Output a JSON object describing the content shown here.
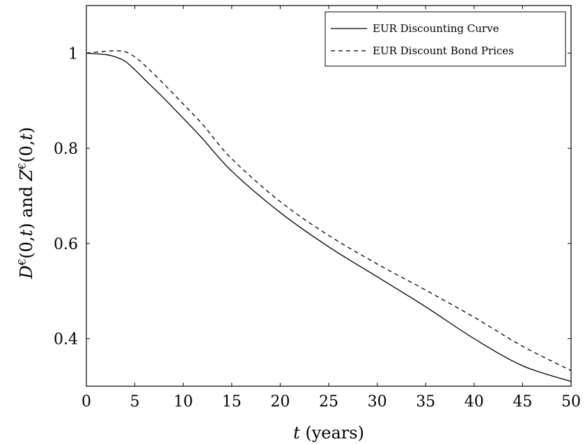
{
  "chart_data": {
    "type": "line",
    "title": "",
    "xlabel": {
      "var": "t",
      "rest": " (years)"
    },
    "ylabel": {
      "part1": "D",
      "sup1": "€",
      "arg1": "(0,",
      "var1": "t",
      "close1": ")",
      "and": " and ",
      "part2": "Z",
      "sup2": "€",
      "arg2": "(0,",
      "var2": "t",
      "close2": ")"
    },
    "xlim": [
      0,
      50
    ],
    "ylim": [
      0.3,
      1.1
    ],
    "xticks": [
      0,
      5,
      10,
      15,
      20,
      25,
      30,
      35,
      40,
      45,
      50
    ],
    "yticks": [
      0.4,
      0.6,
      0.8,
      1
    ],
    "ytick_labels": [
      "0.4",
      "0.6",
      "0.8",
      "1"
    ],
    "grid": false,
    "legend_position": "top-right",
    "x": [
      0,
      2,
      3,
      4,
      5,
      6,
      8,
      10,
      12,
      15,
      20,
      25,
      30,
      35,
      40,
      45,
      50
    ],
    "series": [
      {
        "name": "EUR Discounting Curve",
        "style": "solid",
        "values": [
          1.0,
          0.997,
          0.992,
          0.983,
          0.965,
          0.945,
          0.905,
          0.863,
          0.82,
          0.752,
          0.665,
          0.593,
          0.53,
          0.467,
          0.4,
          0.343,
          0.31
        ]
      },
      {
        "name": "EUR Discount Bond Prices",
        "style": "dashed",
        "values": [
          1.0,
          1.004,
          1.005,
          1.003,
          0.992,
          0.975,
          0.935,
          0.893,
          0.85,
          0.778,
          0.688,
          0.617,
          0.557,
          0.502,
          0.445,
          0.384,
          0.333
        ]
      }
    ]
  }
}
